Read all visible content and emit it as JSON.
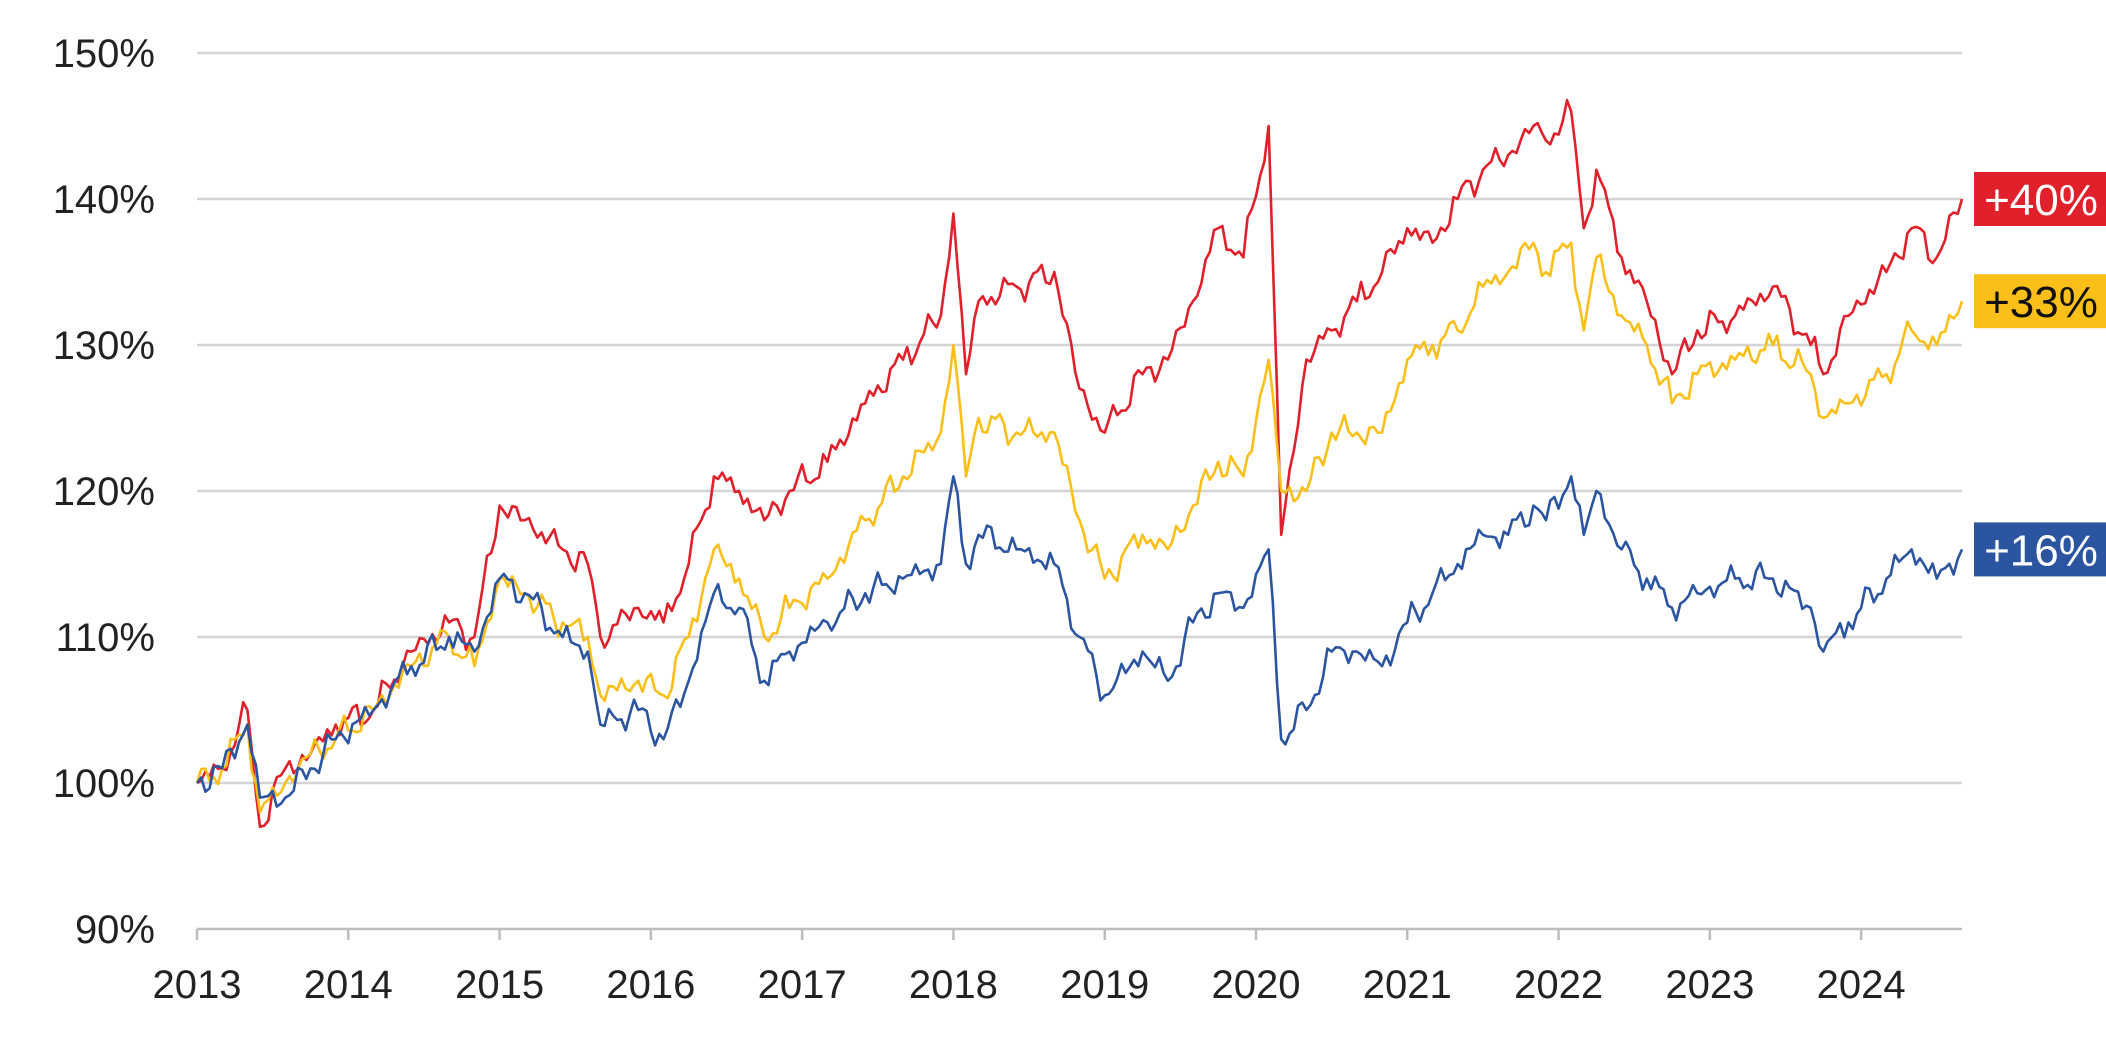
{
  "chart_data": {
    "type": "line",
    "title": "",
    "xlabel": "",
    "ylabel": "",
    "x_ticks": [
      "2013",
      "2014",
      "2015",
      "2016",
      "2017",
      "2018",
      "2019",
      "2020",
      "2021",
      "2022",
      "2023",
      "2024"
    ],
    "y_ticks": [
      "90%",
      "100%",
      "110%",
      "120%",
      "130%",
      "140%",
      "150%"
    ],
    "ylim": [
      90,
      150
    ],
    "xlim": [
      "2013-01",
      "2024-09"
    ],
    "grid": "horizontal",
    "legend": "none",
    "series": [
      {
        "color": "#e0202a",
        "end_label": "+40%",
        "label_text_color": "#ffffff",
        "points": [
          [
            "2013-01",
            100
          ],
          [
            "2013-03",
            101
          ],
          [
            "2013-05",
            105
          ],
          [
            "2013-06",
            97
          ],
          [
            "2013-08",
            101
          ],
          [
            "2013-10",
            102
          ],
          [
            "2013-12",
            104
          ],
          [
            "2014-03",
            105
          ],
          [
            "2014-06",
            109
          ],
          [
            "2014-09",
            111
          ],
          [
            "2014-11",
            110
          ],
          [
            "2015-01",
            119
          ],
          [
            "2015-03",
            118
          ],
          [
            "2015-06",
            116
          ],
          [
            "2015-08",
            115
          ],
          [
            "2015-09",
            110
          ],
          [
            "2015-12",
            112
          ],
          [
            "2016-02",
            111
          ],
          [
            "2016-04",
            115
          ],
          [
            "2016-06",
            121
          ],
          [
            "2016-08",
            120
          ],
          [
            "2016-10",
            118
          ],
          [
            "2016-12",
            120
          ],
          [
            "2017-03",
            122
          ],
          [
            "2017-06",
            126
          ],
          [
            "2017-09",
            129
          ],
          [
            "2017-12",
            132
          ],
          [
            "2018-01",
            139
          ],
          [
            "2018-02",
            128
          ],
          [
            "2018-03",
            133
          ],
          [
            "2018-06",
            134
          ],
          [
            "2018-09",
            135
          ],
          [
            "2018-11",
            127
          ],
          [
            "2019-01",
            124
          ],
          [
            "2019-04",
            128
          ],
          [
            "2019-06",
            129
          ],
          [
            "2019-08",
            133
          ],
          [
            "2019-10",
            138
          ],
          [
            "2019-12",
            136
          ],
          [
            "2020-02",
            145
          ],
          [
            "2020-03",
            117
          ],
          [
            "2020-05",
            129
          ],
          [
            "2020-07",
            131
          ],
          [
            "2020-09",
            133
          ],
          [
            "2020-11",
            135
          ],
          [
            "2021-01",
            138
          ],
          [
            "2021-03",
            137
          ],
          [
            "2021-05",
            140
          ],
          [
            "2021-07",
            142
          ],
          [
            "2021-09",
            143
          ],
          [
            "2021-11",
            145
          ],
          [
            "2021-12",
            144
          ],
          [
            "2022-02",
            146
          ],
          [
            "2022-03",
            138
          ],
          [
            "2022-04",
            142
          ],
          [
            "2022-06",
            136
          ],
          [
            "2022-08",
            133
          ],
          [
            "2022-10",
            128
          ],
          [
            "2022-12",
            131
          ],
          [
            "2023-03",
            132
          ],
          [
            "2023-06",
            134
          ],
          [
            "2023-09",
            130
          ],
          [
            "2023-10",
            128
          ],
          [
            "2023-12",
            132
          ],
          [
            "2024-03",
            135
          ],
          [
            "2024-05",
            138
          ],
          [
            "2024-07",
            136
          ],
          [
            "2024-09",
            140
          ]
        ]
      },
      {
        "color": "#fbbf1a",
        "end_label": "+33%",
        "label_text_color": "#111111",
        "points": [
          [
            "2013-01",
            100
          ],
          [
            "2013-03",
            101
          ],
          [
            "2013-05",
            104
          ],
          [
            "2013-06",
            98
          ],
          [
            "2013-08",
            100
          ],
          [
            "2013-10",
            102
          ],
          [
            "2013-12",
            103
          ],
          [
            "2014-03",
            105
          ],
          [
            "2014-06",
            108
          ],
          [
            "2014-09",
            110
          ],
          [
            "2014-11",
            108
          ],
          [
            "2015-01",
            114
          ],
          [
            "2015-03",
            113
          ],
          [
            "2015-06",
            111
          ],
          [
            "2015-08",
            110
          ],
          [
            "2015-09",
            106
          ],
          [
            "2015-12",
            107
          ],
          [
            "2016-02",
            106
          ],
          [
            "2016-04",
            110
          ],
          [
            "2016-06",
            116
          ],
          [
            "2016-08",
            114
          ],
          [
            "2016-10",
            110
          ],
          [
            "2016-12",
            112
          ],
          [
            "2017-03",
            114
          ],
          [
            "2017-06",
            118
          ],
          [
            "2017-09",
            121
          ],
          [
            "2017-12",
            124
          ],
          [
            "2018-01",
            130
          ],
          [
            "2018-02",
            121
          ],
          [
            "2018-03",
            125
          ],
          [
            "2018-06",
            124
          ],
          [
            "2018-09",
            124
          ],
          [
            "2018-11",
            118
          ],
          [
            "2019-01",
            114
          ],
          [
            "2019-04",
            117
          ],
          [
            "2019-06",
            116
          ],
          [
            "2019-08",
            119
          ],
          [
            "2019-10",
            122
          ],
          [
            "2019-12",
            121
          ],
          [
            "2020-02",
            129
          ],
          [
            "2020-03",
            120
          ],
          [
            "2020-05",
            120
          ],
          [
            "2020-07",
            124
          ],
          [
            "2020-09",
            124
          ],
          [
            "2020-11",
            124
          ],
          [
            "2021-01",
            129
          ],
          [
            "2021-03",
            130
          ],
          [
            "2021-05",
            131
          ],
          [
            "2021-07",
            134
          ],
          [
            "2021-09",
            135
          ],
          [
            "2021-11",
            137
          ],
          [
            "2021-12",
            135
          ],
          [
            "2022-02",
            137
          ],
          [
            "2022-03",
            131
          ],
          [
            "2022-04",
            136
          ],
          [
            "2022-06",
            132
          ],
          [
            "2022-08",
            130
          ],
          [
            "2022-10",
            126
          ],
          [
            "2022-12",
            128
          ],
          [
            "2023-03",
            129
          ],
          [
            "2023-06",
            130
          ],
          [
            "2023-09",
            128
          ],
          [
            "2023-10",
            125
          ],
          [
            "2023-12",
            126
          ],
          [
            "2024-03",
            128
          ],
          [
            "2024-05",
            131
          ],
          [
            "2024-07",
            130
          ],
          [
            "2024-09",
            133
          ]
        ]
      },
      {
        "color": "#2b55a0",
        "end_label": "+16%",
        "label_text_color": "#ffffff",
        "points": [
          [
            "2013-01",
            100
          ],
          [
            "2013-03",
            101
          ],
          [
            "2013-05",
            104
          ],
          [
            "2013-06",
            99
          ],
          [
            "2013-08",
            99
          ],
          [
            "2013-10",
            101
          ],
          [
            "2013-12",
            103
          ],
          [
            "2014-03",
            105
          ],
          [
            "2014-06",
            108
          ],
          [
            "2014-09",
            110
          ],
          [
            "2014-11",
            109
          ],
          [
            "2015-01",
            114
          ],
          [
            "2015-03",
            113
          ],
          [
            "2015-06",
            110
          ],
          [
            "2015-08",
            109
          ],
          [
            "2015-09",
            104
          ],
          [
            "2015-12",
            105
          ],
          [
            "2016-02",
            103
          ],
          [
            "2016-04",
            107
          ],
          [
            "2016-06",
            113
          ],
          [
            "2016-08",
            112
          ],
          [
            "2016-10",
            107
          ],
          [
            "2016-12",
            109
          ],
          [
            "2017-03",
            111
          ],
          [
            "2017-06",
            113
          ],
          [
            "2017-09",
            114
          ],
          [
            "2017-12",
            115
          ],
          [
            "2018-01",
            121
          ],
          [
            "2018-02",
            115
          ],
          [
            "2018-03",
            117
          ],
          [
            "2018-06",
            116
          ],
          [
            "2018-09",
            115
          ],
          [
            "2018-11",
            110
          ],
          [
            "2019-01",
            106
          ],
          [
            "2019-04",
            109
          ],
          [
            "2019-06",
            107
          ],
          [
            "2019-08",
            111
          ],
          [
            "2019-10",
            113
          ],
          [
            "2019-12",
            112
          ],
          [
            "2020-02",
            116
          ],
          [
            "2020-03",
            103
          ],
          [
            "2020-05",
            105
          ],
          [
            "2020-07",
            109
          ],
          [
            "2020-09",
            109
          ],
          [
            "2020-11",
            108
          ],
          [
            "2021-01",
            111
          ],
          [
            "2021-03",
            113
          ],
          [
            "2021-05",
            115
          ],
          [
            "2021-07",
            117
          ],
          [
            "2021-09",
            117
          ],
          [
            "2021-11",
            119
          ],
          [
            "2021-12",
            118
          ],
          [
            "2022-02",
            121
          ],
          [
            "2022-03",
            117
          ],
          [
            "2022-04",
            120
          ],
          [
            "2022-06",
            116
          ],
          [
            "2022-08",
            114
          ],
          [
            "2022-10",
            112
          ],
          [
            "2022-12",
            113
          ],
          [
            "2023-03",
            114
          ],
          [
            "2023-06",
            114
          ],
          [
            "2023-09",
            112
          ],
          [
            "2023-10",
            109
          ],
          [
            "2023-12",
            111
          ],
          [
            "2024-03",
            114
          ],
          [
            "2024-05",
            116
          ],
          [
            "2024-07",
            114
          ],
          [
            "2024-09",
            116
          ]
        ]
      }
    ]
  }
}
